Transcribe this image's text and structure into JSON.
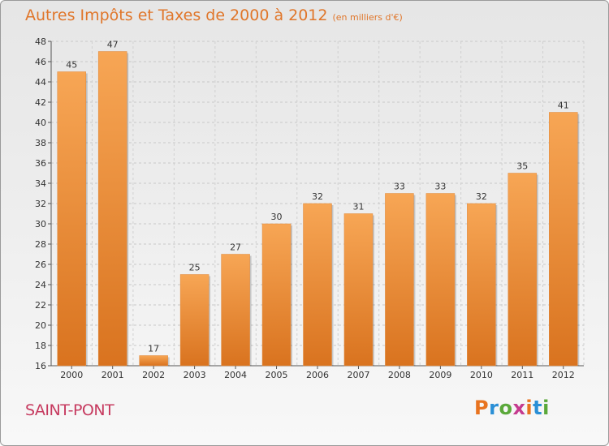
{
  "header": {
    "title": "Autres Impôts et Taxes de 2000 à 2012",
    "subtitle": "(en milliers d'€)"
  },
  "footer": {
    "place": "SAINT-PONT",
    "logo_text": "Proxiti"
  },
  "colors": {
    "bar_top": "#f7a655",
    "bar_bottom": "#d9731f",
    "title": "#e0762a",
    "place": "#c63a5f"
  },
  "chart_data": {
    "type": "bar",
    "title": "Autres Impôts et Taxes de 2000 à 2012",
    "subtitle": "(en milliers d'€)",
    "categories": [
      "2000",
      "2001",
      "2002",
      "2003",
      "2004",
      "2005",
      "2006",
      "2007",
      "2008",
      "2009",
      "2010",
      "2011",
      "2012"
    ],
    "values": [
      45,
      47,
      17,
      25,
      27,
      30,
      32,
      31,
      33,
      33,
      32,
      35,
      41
    ],
    "ylim": [
      16,
      48
    ],
    "yticks": [
      16,
      18,
      20,
      22,
      24,
      26,
      28,
      30,
      32,
      34,
      36,
      38,
      40,
      42,
      44,
      46,
      48
    ],
    "grid": true,
    "data_labels": true
  }
}
